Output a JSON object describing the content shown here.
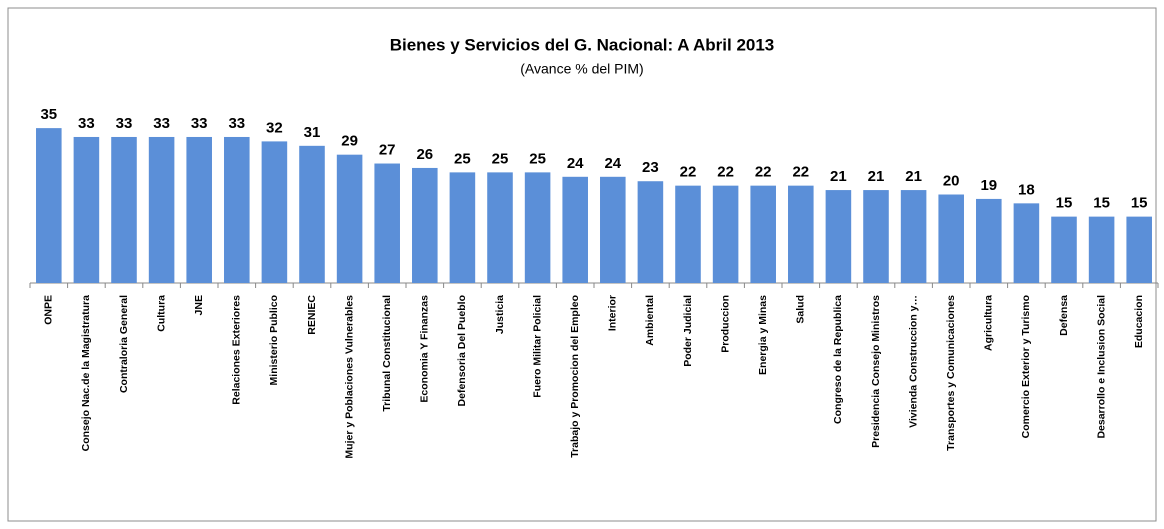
{
  "chart_data": {
    "type": "bar",
    "title": "Bienes y Servicios del G. Nacional:  A Abril  2013",
    "subtitle": "(Avance % del PIM)",
    "categories": [
      "ONPE",
      "Consejo Nac.de la Magistratura",
      "Contraloria General",
      "Cultura",
      "JNE",
      "Relaciones Exteriores",
      "Ministerio Publico",
      "RENIEC",
      "Mujer y Poblaciones Vulnerables",
      "Tribunal Constitucional",
      "Economia Y Finanzas",
      "Defensoria Del Pueblo",
      "Justicia",
      "Fuero Militar Policial",
      "Trabajo y Promocion del Empleo",
      "Interior",
      "Ambiental",
      "Poder Judicial",
      "Produccion",
      "Energia y Minas",
      "Salud",
      "Congreso de la Republica",
      "Presidencia Consejo Ministros",
      "Vivienda Construccion y…",
      "Transportes y Comunicaciones",
      "Agricultura",
      "Comercio Exterior y Turismo",
      "Defensa",
      "Desarrollo e Inclusion Social",
      "Educacion"
    ],
    "values": [
      35,
      33,
      33,
      33,
      33,
      33,
      32,
      31,
      29,
      27,
      26,
      25,
      25,
      25,
      24,
      24,
      23,
      22,
      22,
      22,
      22,
      21,
      21,
      21,
      20,
      19,
      18,
      15,
      15,
      15
    ],
    "color": "#5b8fd8",
    "ylim": [
      0,
      40
    ]
  }
}
